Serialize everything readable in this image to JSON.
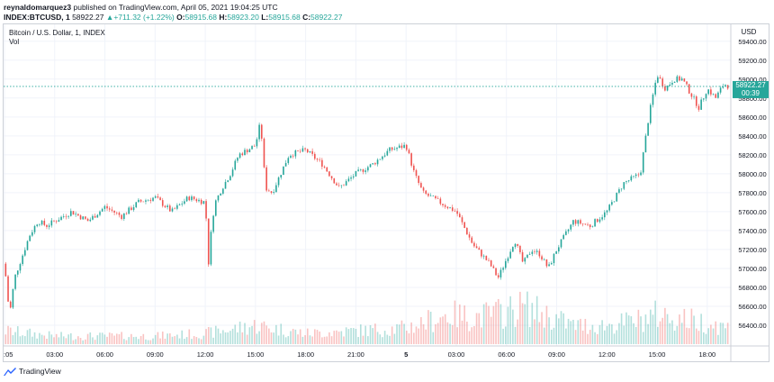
{
  "header": {
    "author": "reynaldomarquez3",
    "published": "published on TradingView.com, April 05, 2021 19:04:25 UTC",
    "symbol": "INDEX:BTCUSD, 1",
    "last": "58922.27",
    "change": "+711.32 (+1.22%)",
    "o_label": "O:",
    "o_value": "58915.68",
    "h_label": "H:",
    "h_value": "58923.20",
    "l_label": "L:",
    "l_value": "58915.68",
    "c_label": "C:",
    "c_value": "58922.27"
  },
  "chart_legend": {
    "title": "Bitcoin / U.S. Dollar, 1, INDEX",
    "indicator": "Vol"
  },
  "price_scale": {
    "currency": "USD",
    "last_price_tag": "58922.27",
    "countdown": "00:39"
  },
  "branding": {
    "logo_text": "TradingView"
  },
  "colors": {
    "up": "#26a69a",
    "down": "#ef5350",
    "grid": "#f0f3fa",
    "axis_text": "#131722"
  },
  "chart_data": {
    "type": "candlestick",
    "title": "Bitcoin / U.S. Dollar, 1, INDEX",
    "xlabel": "",
    "ylabel": "",
    "ylim": [
      56200,
      59550
    ],
    "yticks": [
      56400,
      56600,
      56800,
      57000,
      57200,
      57400,
      57600,
      57800,
      58000,
      58200,
      58400,
      58600,
      58800,
      59000,
      59200,
      59400
    ],
    "ytick_labels": [
      "56400.00",
      "56600.00",
      "56800.00",
      "57000.00",
      "57200.00",
      "57400.00",
      "57600.00",
      "57800.00",
      "58000.00",
      "58200.00",
      "58400.00",
      "58600.00",
      "58800.00",
      "59000.00",
      "59200.00",
      "59400.00"
    ],
    "xticks": [
      ":05",
      "03:00",
      "06:00",
      "09:00",
      "12:00",
      "15:00",
      "18:00",
      "21:00",
      "5",
      "03:00",
      "06:00",
      "09:00",
      "12:00",
      "15:00",
      "18:00"
    ],
    "x_hours": [
      0,
      3,
      6,
      9,
      12,
      15,
      18,
      21,
      24,
      27,
      30,
      33,
      36,
      39,
      42
    ],
    "x_range_hours": [
      0,
      43.3
    ],
    "price_path": {
      "hours": [
        0,
        0.3,
        0.6,
        1,
        1.5,
        2,
        2.5,
        3,
        4,
        5,
        6,
        7,
        8,
        9,
        10,
        11,
        12,
        12.2,
        12.4,
        12.6,
        13,
        13.5,
        14,
        15,
        15.3,
        15.6,
        16,
        16.5,
        17,
        18,
        19,
        20,
        21,
        22,
        23,
        24,
        24.5,
        25,
        25.5,
        26,
        27,
        28,
        28.5,
        29,
        29.5,
        30,
        30.5,
        31,
        31.5,
        32,
        32.5,
        33,
        34,
        35,
        36,
        37,
        38,
        38.5,
        39,
        39.5,
        40,
        40.5,
        41,
        41.5,
        42,
        42.5,
        43,
        43.3
      ],
      "price": [
        57050,
        56500,
        56900,
        57100,
        57350,
        57500,
        57450,
        57500,
        57600,
        57500,
        57650,
        57550,
        57700,
        57750,
        57600,
        57750,
        57700,
        57050,
        57500,
        57700,
        57850,
        58000,
        58200,
        58300,
        58550,
        57850,
        57800,
        58000,
        58200,
        58250,
        58100,
        57850,
        58000,
        58100,
        58250,
        58300,
        58000,
        57800,
        57750,
        57700,
        57600,
        57250,
        57150,
        57050,
        56900,
        57100,
        57300,
        57050,
        57200,
        57150,
        57000,
        57200,
        57500,
        57450,
        57600,
        57900,
        58000,
        58600,
        59050,
        58900,
        59000,
        59000,
        58850,
        58700,
        58900,
        58800,
        58950,
        58922
      ]
    },
    "volume_level": [
      [
        0,
        0.25
      ],
      [
        3,
        0.15
      ],
      [
        6,
        0.15
      ],
      [
        9,
        0.15
      ],
      [
        12,
        0.2
      ],
      [
        15,
        0.35
      ],
      [
        18,
        0.2
      ],
      [
        21,
        0.25
      ],
      [
        24,
        0.3
      ],
      [
        26.5,
        0.55
      ],
      [
        28,
        0.5
      ],
      [
        30,
        0.6
      ],
      [
        31,
        0.7
      ],
      [
        34,
        0.35
      ],
      [
        36,
        0.35
      ],
      [
        38,
        0.45
      ],
      [
        39,
        0.55
      ],
      [
        42,
        0.4
      ],
      [
        43.3,
        0.3
      ]
    ],
    "last_price": 58922.27
  }
}
